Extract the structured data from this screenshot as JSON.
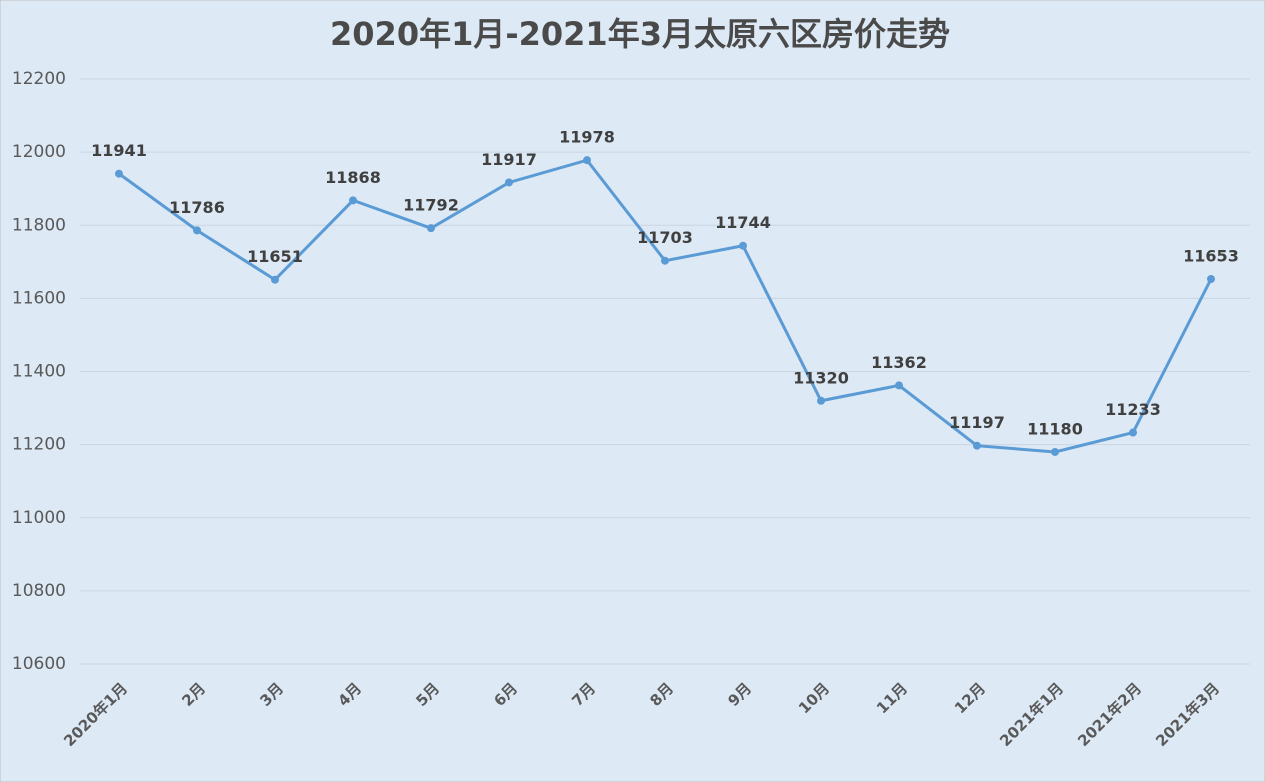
{
  "chart_data": {
    "type": "line",
    "title": "2020年1月-2021年3月太原六区房价走势",
    "categories": [
      "2020年1月",
      "2月",
      "3月",
      "4月",
      "5月",
      "6月",
      "7月",
      "8月",
      "9月",
      "10月",
      "11月",
      "12月",
      "2021年1月",
      "2021年2月",
      "2021年3月"
    ],
    "values": [
      11941,
      11786,
      11651,
      11868,
      11792,
      11917,
      11978,
      11703,
      11744,
      11320,
      11362,
      11197,
      11180,
      11233,
      11653
    ],
    "color": "#5b9bd5",
    "ylim": [
      10600,
      12200
    ],
    "yticks": [
      10600,
      10800,
      11000,
      11200,
      11400,
      11600,
      11800,
      12000,
      12200
    ],
    "grid": true
  }
}
